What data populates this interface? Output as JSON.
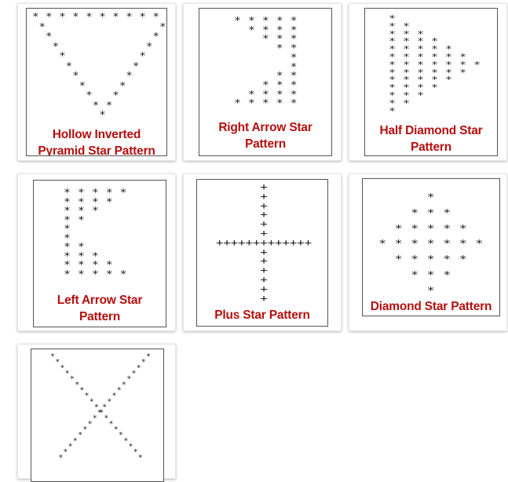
{
  "cards": [
    {
      "title": "Hollow Inverted Pyramid Star Pattern",
      "art": "* * * * * * * * * * *\n *                 *\n  *               *\n   *             *\n    *           *\n     *         *\n      *       *\n       *     *\n        *   *\n         * *\n          *"
    },
    {
      "title": "Right Arrow Star Pattern",
      "art": "* * * * *\n  * * * *\n    * * *\n      * *\n        *\n        *\n      * *\n    * * *\n  * * * *\n* * * * *"
    },
    {
      "title": "Half Diamond Star Pattern",
      "art": "*\n* *\n* * *\n* * * *\n* * * * *\n* * * * * *\n* * * * * * *\n* * * * * *\n* * * * *\n* * * *\n* * *\n* *\n*"
    },
    {
      "title": "Left Arrow Star Pattern",
      "art": "* * * * *\n* * * *\n* * *\n* *\n*\n*\n* *\n* * *\n* * * *\n* * * * *"
    },
    {
      "title": "Plus Star Pattern",
      "art": "      +\n      +\n      +\n      +\n      +\n      +\n+++++++++++++\n      +\n      +\n      +\n      +\n      +\n      +"
    },
    {
      "title": "Diamond Star Pattern",
      "art": "      *\n    * * *\n  * * * * *\n* * * * * * *\n  * * * * *\n    * * *\n      *"
    },
    {
      "title": "",
      "art": "x-star-pattern"
    }
  ]
}
